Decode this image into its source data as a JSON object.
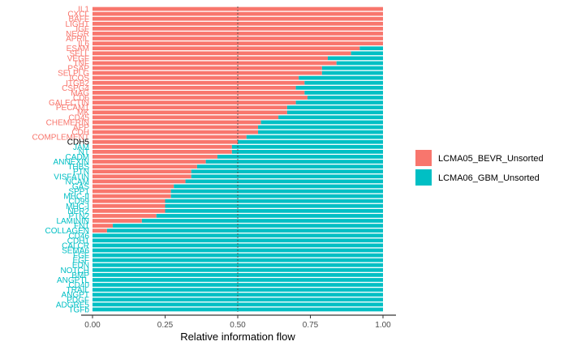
{
  "chart_data": {
    "type": "bar",
    "orientation": "horizontal",
    "stacked": true,
    "xlabel": "Relative information flow",
    "ylabel": "",
    "xlim": [
      0,
      1
    ],
    "x_ticks": [
      "0.00",
      "0.25",
      "0.50",
      "0.75",
      "1.00"
    ],
    "x_tick_values": [
      0,
      0.25,
      0.5,
      0.75,
      1
    ],
    "reference_line": 0.5,
    "legend_position": "right",
    "series": [
      {
        "name": "LCMA05_BEVR_Unsorted",
        "color": "#F8766D"
      },
      {
        "name": "LCMA06_GBM_Unsorted",
        "color": "#00BFC4"
      }
    ],
    "categories": [
      "IL1",
      "CXCL",
      "BAFF",
      "LIGHT",
      "IGF",
      "NEGR",
      "APRIL",
      "IL6",
      "ESAM",
      "SELL",
      "VEGF",
      "TNF",
      "PSAP",
      "SELPLG",
      "ICOS",
      "ITGB2",
      "CSPG4",
      "MAG",
      "CD6",
      "GALECTIN",
      "PECAM1",
      "MK",
      "CD45",
      "CHEMERIN",
      "APP",
      "CDH",
      "COMPLEMENT",
      "CDH5",
      "JAM",
      "NT",
      "CADM",
      "ANNEXIN",
      "THBS",
      "PTN",
      "VISFATIN",
      "NCAM",
      "GAS",
      "SPP1",
      "MHC-II",
      "CD99",
      "MHC-I",
      "NPR2",
      "PTN2",
      "LAMININ",
      "FN1",
      "COLLAGEN",
      "CD46",
      "CDH1",
      "CALCR",
      "SEMA6",
      "FGF",
      "EGF",
      "EDN",
      "NOTCH",
      "BMP",
      "ANGPTL",
      "CD40",
      "TRAIL",
      "ANGPT",
      "PDGF",
      "ADGRE5",
      "TGFb"
    ],
    "values": [
      1.0,
      1.0,
      1.0,
      1.0,
      1.0,
      1.0,
      1.0,
      1.0,
      0.92,
      0.89,
      0.81,
      0.84,
      0.79,
      0.79,
      0.71,
      0.73,
      0.7,
      0.73,
      0.74,
      0.7,
      0.67,
      0.67,
      0.64,
      0.58,
      0.57,
      0.57,
      0.53,
      0.5,
      0.48,
      0.48,
      0.43,
      0.39,
      0.36,
      0.34,
      0.34,
      0.32,
      0.28,
      0.27,
      0.27,
      0.25,
      0.25,
      0.25,
      0.22,
      0.17,
      0.07,
      0.05,
      0.0,
      0.0,
      0.0,
      0.0,
      0.0,
      0.0,
      0.0,
      0.0,
      0.0,
      0.0,
      0.0,
      0.0,
      0.0,
      0.0,
      0.0,
      0.0
    ],
    "label_colors": {
      "significant_first": "#F8766D",
      "neutral": "#000000",
      "significant_second": "#00BFC4"
    },
    "label_groups": {
      "first_until_index": 26,
      "neutral_index": 27
    }
  }
}
